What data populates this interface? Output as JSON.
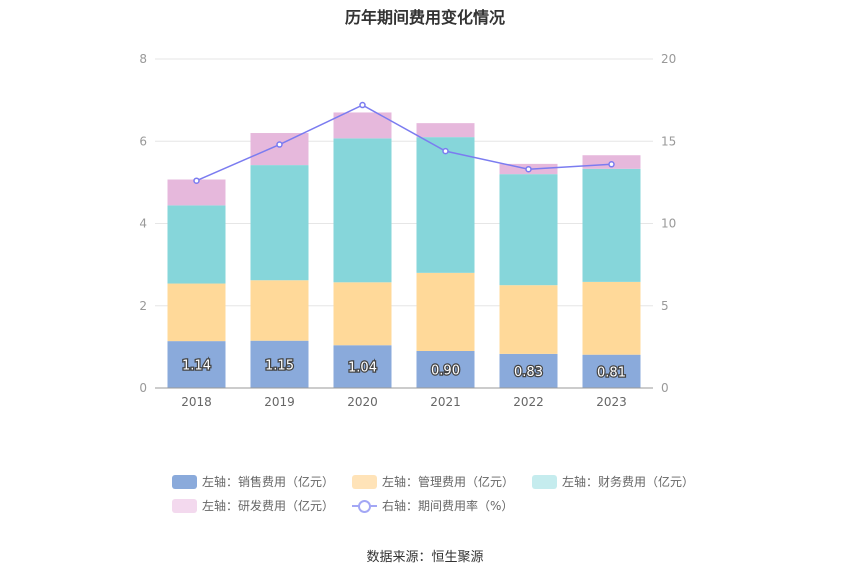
{
  "chart_data": {
    "type": "bar",
    "title": "历年期间费用变化情况",
    "categories": [
      "2018",
      "2019",
      "2020",
      "2021",
      "2022",
      "2023"
    ],
    "y_left": {
      "min": 0,
      "max": 8,
      "ticks": [
        "0",
        "2",
        "4",
        "6",
        "8"
      ]
    },
    "y_right": {
      "min": 0,
      "max": 20,
      "ticks": [
        "0",
        "5",
        "10",
        "15",
        "20"
      ]
    },
    "stacked": true,
    "grid": true,
    "legend_position": "bottom",
    "series": [
      {
        "name": "左轴：销售费用（亿元）",
        "axis": "left",
        "color": "#8aaadb",
        "values": [
          1.14,
          1.15,
          1.04,
          0.9,
          0.83,
          0.81
        ],
        "labels": [
          "1.14",
          "1.15",
          "1.04",
          "0.90",
          "0.83",
          "0.81"
        ]
      },
      {
        "name": "左轴：管理费用（亿元）",
        "axis": "left",
        "color": "#ffd999",
        "values": [
          1.4,
          1.47,
          1.53,
          1.9,
          1.67,
          1.77
        ]
      },
      {
        "name": "左轴：财务费用（亿元）",
        "axis": "left",
        "color": "#86d6da",
        "values": [
          1.9,
          2.8,
          3.5,
          3.3,
          2.7,
          2.75
        ]
      },
      {
        "name": "左轴：研发费用（亿元）",
        "axis": "left",
        "color": "#e6b8dc",
        "values": [
          0.63,
          0.78,
          0.63,
          0.34,
          0.25,
          0.33
        ]
      },
      {
        "name": "右轴：期间费用率（%）",
        "axis": "right",
        "type": "line",
        "color": "#7b7cf0",
        "values": [
          12.6,
          14.8,
          17.2,
          14.4,
          13.3,
          13.6
        ]
      }
    ],
    "legend_swatch_colors": [
      "#8aaadb",
      "#ffe3b8",
      "#c5ecee",
      "#f3d9ee"
    ],
    "source": "数据来源：恒生聚源"
  }
}
